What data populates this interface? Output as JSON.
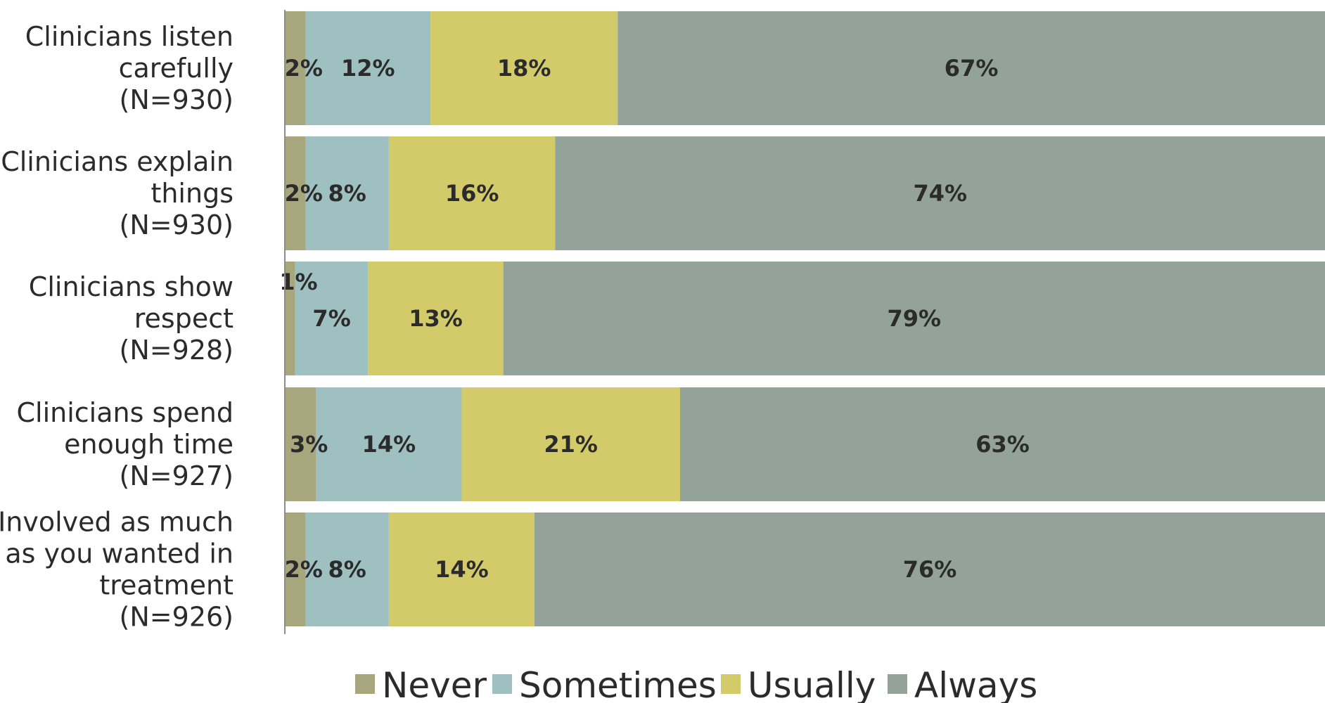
{
  "chart_data": {
    "type": "bar",
    "orientation": "horizontal",
    "stacked": true,
    "percent_stacked": true,
    "title": "",
    "xlabel": "",
    "ylabel": "",
    "xlim": [
      0,
      100
    ],
    "grid": false,
    "legend_position": "bottom",
    "categories": [
      "Clinicians listen carefully (N=930)",
      "Clinicians explain things (N=930)",
      "Clinicians show respect (N=928)",
      "Clinicians spend enough time (N=927)",
      "Involved as much as you wanted in treatment (N=926)"
    ],
    "category_label_lines": [
      [
        "Clinicians listen",
        "carefully",
        "(N=930)"
      ],
      [
        "Clinicians explain",
        "things",
        "(N=930)"
      ],
      [
        "Clinicians show",
        "respect",
        "(N=928)"
      ],
      [
        "Clinicians spend",
        "enough time",
        "(N=927)"
      ],
      [
        "Involved as much",
        "as you wanted in",
        "treatment",
        "(N=926)"
      ]
    ],
    "series": [
      {
        "name": "Never",
        "color": "#a8a67c",
        "values": [
          2,
          2,
          1,
          3,
          2
        ],
        "labels": [
          "2%",
          "2%",
          "1%",
          "3%",
          "2%"
        ]
      },
      {
        "name": "Sometimes",
        "color": "#9fc0c1",
        "values": [
          12,
          8,
          7,
          14,
          8
        ],
        "labels": [
          "12%",
          "8%",
          "7%",
          "14%",
          "8%"
        ]
      },
      {
        "name": "Usually",
        "color": "#d3cb6a",
        "values": [
          18,
          16,
          13,
          21,
          14
        ],
        "labels": [
          "18%",
          "16%",
          "13%",
          "21%",
          "14%"
        ]
      },
      {
        "name": "Always",
        "color": "#94a39a",
        "values": [
          67,
          74,
          79,
          63,
          76
        ],
        "labels": [
          "67%",
          "74%",
          "79%",
          "63%",
          "76%"
        ]
      }
    ]
  }
}
